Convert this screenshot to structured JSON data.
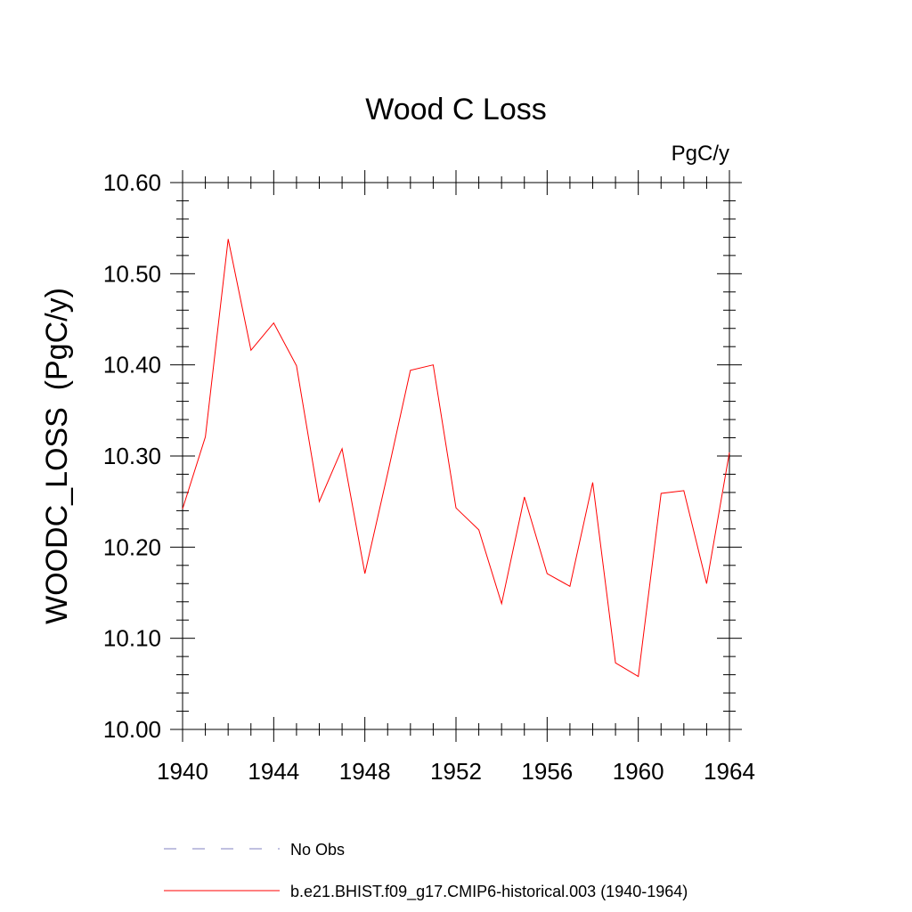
{
  "chart_data": {
    "type": "line",
    "title": "Wood C Loss",
    "units_label": "PgC/y",
    "ylabel": "WOODC_LOSS  (PgC/y)",
    "xlabel": "",
    "xlim": [
      1940,
      1964
    ],
    "ylim": [
      10.0,
      10.6
    ],
    "x_ticks": [
      1940,
      1944,
      1948,
      1952,
      1956,
      1960,
      1964
    ],
    "x_tick_labels": [
      "1940",
      "1944",
      "1948",
      "1952",
      "1956",
      "1960",
      "1964"
    ],
    "y_ticks": [
      10.0,
      10.1,
      10.2,
      10.3,
      10.4,
      10.5,
      10.6
    ],
    "y_tick_labels": [
      "10.00",
      "10.10",
      "10.20",
      "10.30",
      "10.40",
      "10.50",
      "10.60"
    ],
    "grid": false,
    "legend_position": "bottom",
    "series": [
      {
        "name": "b.e21.BHIST.f09_g17.CMIP6-historical.003 (1940-1964)",
        "color": "#ff0000",
        "style": "solid",
        "x": [
          1940,
          1941,
          1942,
          1943,
          1944,
          1945,
          1946,
          1947,
          1948,
          1949,
          1950,
          1951,
          1952,
          1953,
          1954,
          1955,
          1956,
          1957,
          1958,
          1959,
          1960,
          1961,
          1962,
          1963,
          1964
        ],
        "values": [
          10.242,
          10.321,
          10.538,
          10.416,
          10.446,
          10.399,
          10.25,
          10.308,
          10.171,
          10.281,
          10.394,
          10.4,
          10.243,
          10.219,
          10.138,
          10.255,
          10.171,
          10.157,
          10.271,
          10.073,
          10.058,
          10.259,
          10.262,
          10.16,
          10.304
        ]
      }
    ],
    "legend": [
      {
        "label": "No Obs",
        "color": "#8080c0",
        "style": "dashed"
      },
      {
        "label": "b.e21.BHIST.f09_g17.CMIP6-historical.003 (1940-1964)",
        "color": "#ff0000",
        "style": "solid"
      }
    ]
  }
}
